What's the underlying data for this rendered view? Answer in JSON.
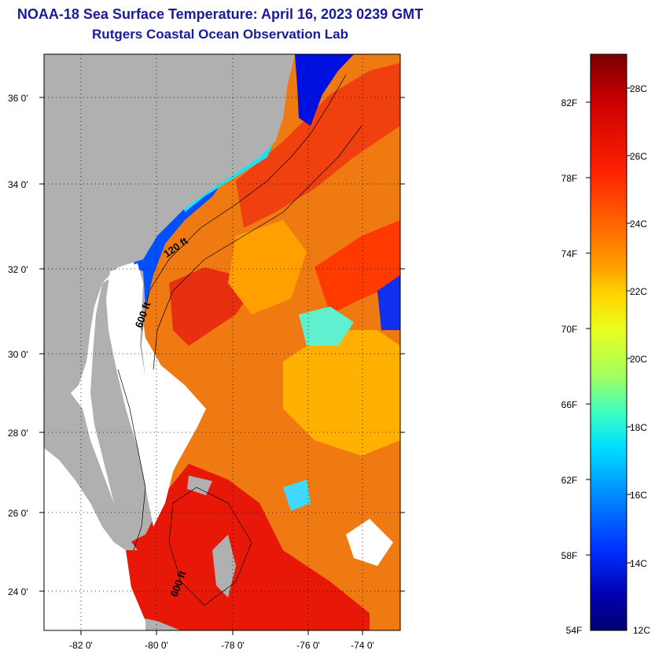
{
  "title": "NOAA-18 Sea Surface Temperature:  April 16, 2023 0239 GMT",
  "subtitle": "Rutgers Coastal Ocean Observation Lab",
  "map": {
    "lat_labels": [
      "36 0'",
      "34 0'",
      "32 0'",
      "30 0'",
      "28 0'",
      "26 0'",
      "24 0'"
    ],
    "lon_labels": [
      "-82 0'",
      "-80 0'",
      "-78 0'",
      "-76 0'",
      "-74 0'"
    ],
    "contour_labels": [
      "120 ft",
      "600 ft",
      "600 ft"
    ],
    "land_color": "#b0b0b0",
    "lat_range": [
      23,
      37
    ],
    "lon_range": [
      -83,
      -73
    ]
  },
  "colorbar": {
    "fahrenheit_labels": [
      "82F",
      "78F",
      "74F",
      "70F",
      "66F",
      "62F",
      "58F",
      "54F"
    ],
    "celsius_labels": [
      "28C",
      "26C",
      "24C",
      "22C",
      "20C",
      "18C",
      "16C",
      "14C",
      "12C"
    ],
    "colors": [
      "#7a0000",
      "#c80000",
      "#ff2000",
      "#ff6a00",
      "#ffa000",
      "#ffd800",
      "#e8ff20",
      "#a0ff60",
      "#40ffc0",
      "#00e0ff",
      "#0090ff",
      "#0030ff",
      "#0000b0",
      "#000070"
    ]
  }
}
